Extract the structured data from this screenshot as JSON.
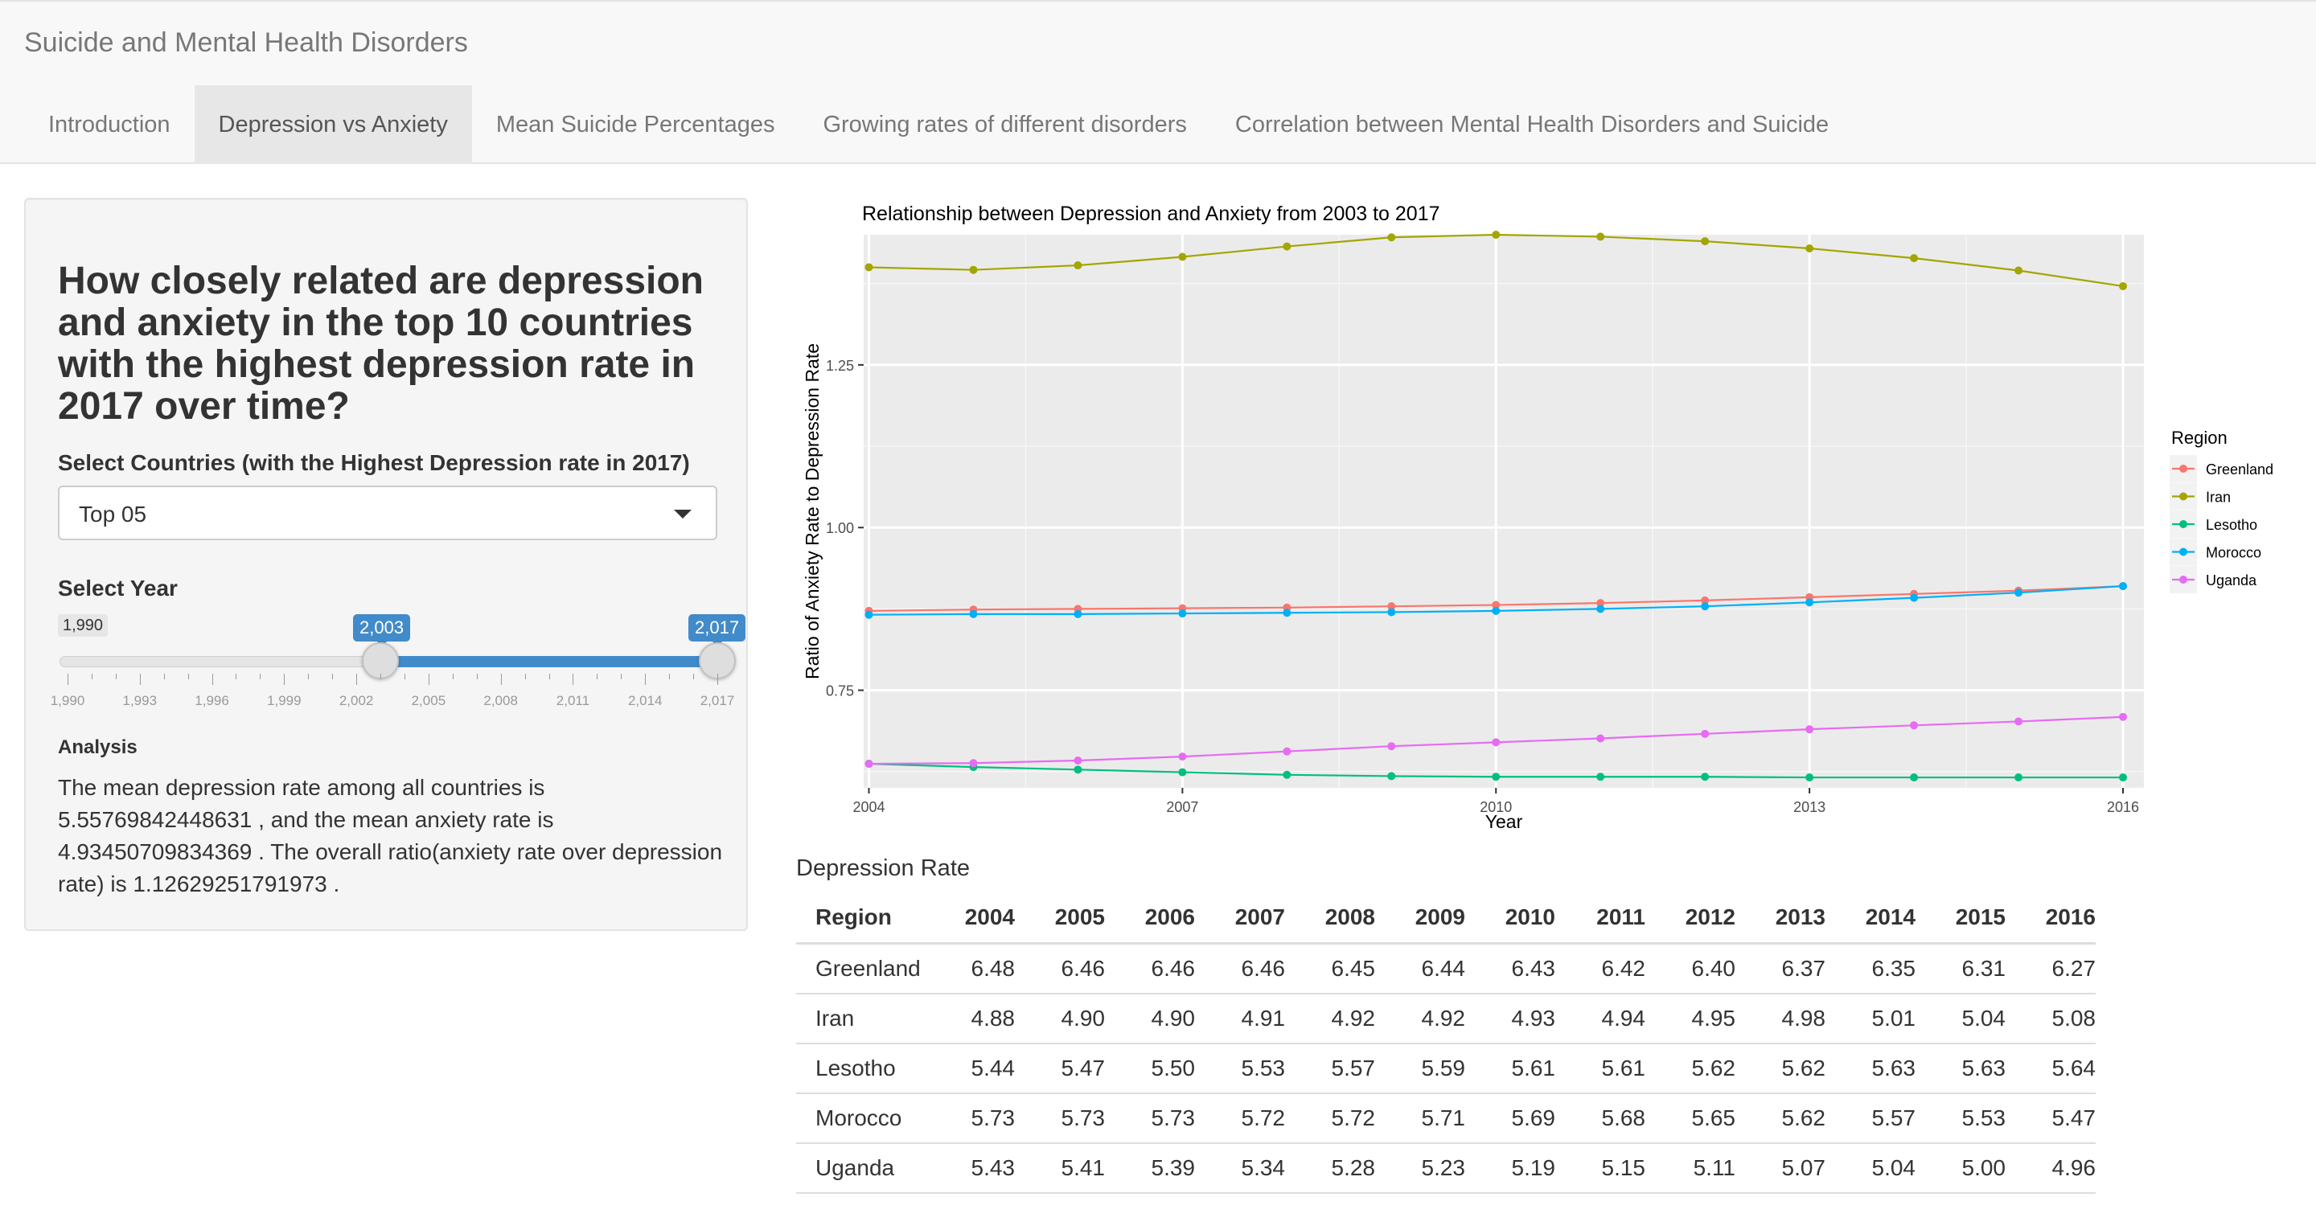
{
  "app": {
    "title": "Suicide and Mental Health Disorders",
    "tabs": [
      {
        "label": "Introduction",
        "active": false
      },
      {
        "label": "Depression vs Anxiety",
        "active": true
      },
      {
        "label": "Mean Suicide Percentages",
        "active": false
      },
      {
        "label": "Growing rates of different disorders",
        "active": false
      },
      {
        "label": "Correlation between Mental Health Disorders and Suicide",
        "active": false
      }
    ]
  },
  "sidebar": {
    "question": "How closely related are depression and anxiety in the top 10 countries with the highest depression rate in 2017 over time?",
    "country_select_label": "Select Countries (with the Highest Depression rate in 2017)",
    "country_select_value": "Top 05",
    "year_label": "Select Year",
    "slider": {
      "min_label": "1,990",
      "from_label": "2,003",
      "to_label": "2,017",
      "min": 1990,
      "max": 2017,
      "from": 2003,
      "to": 2017,
      "grid_labels": [
        "1,990",
        "1,993",
        "1,996",
        "1,999",
        "2,002",
        "2,005",
        "2,008",
        "2,011",
        "2,014",
        "2,017"
      ]
    },
    "analysis_heading": "Analysis",
    "analysis_text": "The mean depression rate among all countries is 5.55769842448631 , and the mean anxiety rate is 4.93450709834369 . The overall ratio(anxiety rate over depression rate) is 1.12629251791973 ."
  },
  "chart_data": {
    "type": "line",
    "title": "Relationship between Depression and Anxiety from 2003 to 2017",
    "xlabel": "Year",
    "ylabel": "Ratio of Anxiety Rate to Depression Rate",
    "xlim": [
      2003.95,
      2016.2
    ],
    "ylim": [
      0.6,
      1.45
    ],
    "x_ticks": [
      2004,
      2007,
      2010,
      2013,
      2016
    ],
    "y_ticks": [
      0.75,
      1.0,
      1.25
    ],
    "y_tick_labels": [
      "0.75",
      "1.00",
      "1.25"
    ],
    "grid": true,
    "legend_title": "Region",
    "legend_position": "right",
    "x": [
      2004,
      2005,
      2006,
      2007,
      2008,
      2009,
      2010,
      2011,
      2012,
      2013,
      2014,
      2015,
      2016
    ],
    "series": [
      {
        "name": "Greenland",
        "color": "#F8766D",
        "values": [
          0.872,
          0.874,
          0.875,
          0.876,
          0.877,
          0.879,
          0.881,
          0.884,
          0.888,
          0.893,
          0.898,
          0.903,
          0.91
        ]
      },
      {
        "name": "Iran",
        "color": "#A3A500",
        "values": [
          1.4,
          1.396,
          1.403,
          1.416,
          1.432,
          1.446,
          1.45,
          1.447,
          1.44,
          1.429,
          1.414,
          1.395,
          1.371
        ]
      },
      {
        "name": "Lesotho",
        "color": "#00BF7D",
        "values": [
          0.637,
          0.632,
          0.628,
          0.624,
          0.62,
          0.618,
          0.617,
          0.617,
          0.617,
          0.616,
          0.616,
          0.616,
          0.616
        ]
      },
      {
        "name": "Morocco",
        "color": "#00B0F6",
        "values": [
          0.866,
          0.867,
          0.867,
          0.868,
          0.869,
          0.87,
          0.872,
          0.875,
          0.879,
          0.885,
          0.892,
          0.9,
          0.91
        ]
      },
      {
        "name": "Uganda",
        "color": "#E76BF3",
        "values": [
          0.637,
          0.638,
          0.642,
          0.648,
          0.656,
          0.664,
          0.67,
          0.676,
          0.683,
          0.69,
          0.696,
          0.702,
          0.709
        ]
      }
    ]
  },
  "table": {
    "title": "Depression Rate",
    "columns": [
      "Region",
      "2004",
      "2005",
      "2006",
      "2007",
      "2008",
      "2009",
      "2010",
      "2011",
      "2012",
      "2013",
      "2014",
      "2015",
      "2016"
    ],
    "rows": [
      [
        "Greenland",
        "6.48",
        "6.46",
        "6.46",
        "6.46",
        "6.45",
        "6.44",
        "6.43",
        "6.42",
        "6.40",
        "6.37",
        "6.35",
        "6.31",
        "6.27"
      ],
      [
        "Iran",
        "4.88",
        "4.90",
        "4.90",
        "4.91",
        "4.92",
        "4.92",
        "4.93",
        "4.94",
        "4.95",
        "4.98",
        "5.01",
        "5.04",
        "5.08"
      ],
      [
        "Lesotho",
        "5.44",
        "5.47",
        "5.50",
        "5.53",
        "5.57",
        "5.59",
        "5.61",
        "5.61",
        "5.62",
        "5.62",
        "5.63",
        "5.63",
        "5.64"
      ],
      [
        "Morocco",
        "5.73",
        "5.73",
        "5.73",
        "5.72",
        "5.72",
        "5.71",
        "5.69",
        "5.68",
        "5.65",
        "5.62",
        "5.57",
        "5.53",
        "5.47"
      ],
      [
        "Uganda",
        "5.43",
        "5.41",
        "5.39",
        "5.34",
        "5.28",
        "5.23",
        "5.19",
        "5.15",
        "5.11",
        "5.07",
        "5.04",
        "5.00",
        "4.96"
      ]
    ]
  }
}
